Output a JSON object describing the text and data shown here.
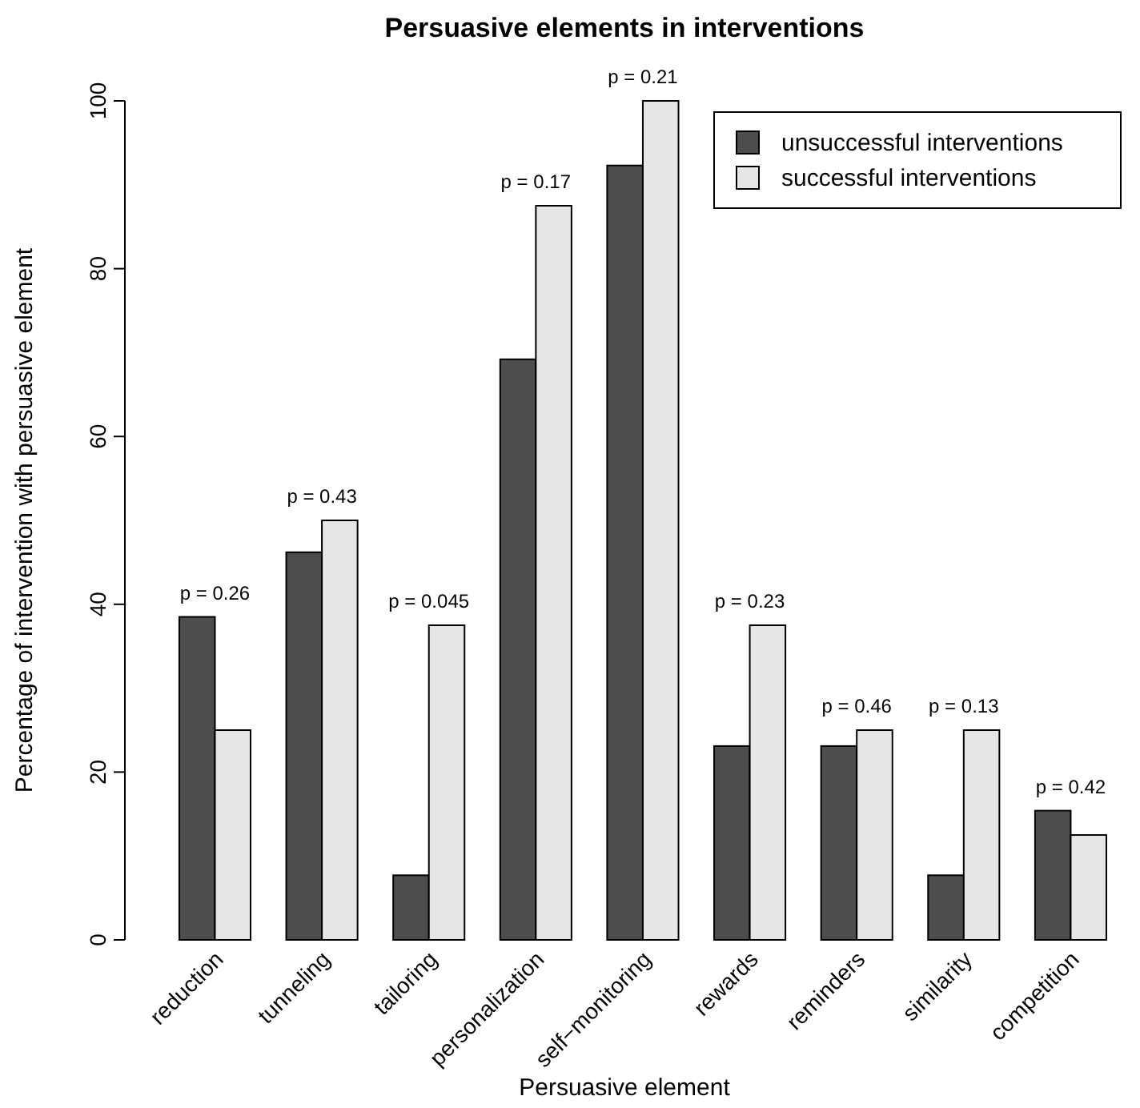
{
  "chart_data": {
    "type": "bar",
    "title": "Persuasive elements in interventions",
    "xlabel": "Persuasive element",
    "ylabel": "Percentage of intervention with persuasive element",
    "categories": [
      "reduction",
      "tunneling",
      "tailoring",
      "personalization",
      "self−monitoring",
      "rewards",
      "reminders",
      "similarity",
      "competition"
    ],
    "series": [
      {
        "name": "unsuccessful interventions",
        "color": "#4d4d4d",
        "values": [
          38.5,
          46.2,
          7.7,
          69.2,
          92.3,
          23.1,
          23.1,
          7.7,
          15.4
        ]
      },
      {
        "name": "successful interventions",
        "color": "#e6e6e6",
        "values": [
          25,
          50,
          37.5,
          87.5,
          100,
          37.5,
          25,
          25,
          12.5
        ]
      }
    ],
    "ylim": [
      0,
      100
    ],
    "yticks": [
      0,
      20,
      40,
      60,
      80,
      100
    ],
    "grid": false,
    "legend": "top right",
    "annotations": [
      {
        "text": "p = 0.26",
        "x": "reduction",
        "y": 38.5
      },
      {
        "text": "p = 0.43",
        "x": "tunneling",
        "y": 50
      },
      {
        "text": "p = 0.045",
        "x": "tailoring",
        "y": 37.5
      },
      {
        "text": "p = 0.17",
        "x": "personalization",
        "y": 87.5
      },
      {
        "text": "p = 0.21",
        "x": "self−monitoring",
        "y": 100
      },
      {
        "text": "p = 0.23",
        "x": "rewards",
        "y": 37.5
      },
      {
        "text": "p = 0.46",
        "x": "reminders",
        "y": 25
      },
      {
        "text": "p = 0.13",
        "x": "similarity",
        "y": 25
      },
      {
        "text": "p = 0.42",
        "x": "competition",
        "y": 15.4
      }
    ]
  }
}
